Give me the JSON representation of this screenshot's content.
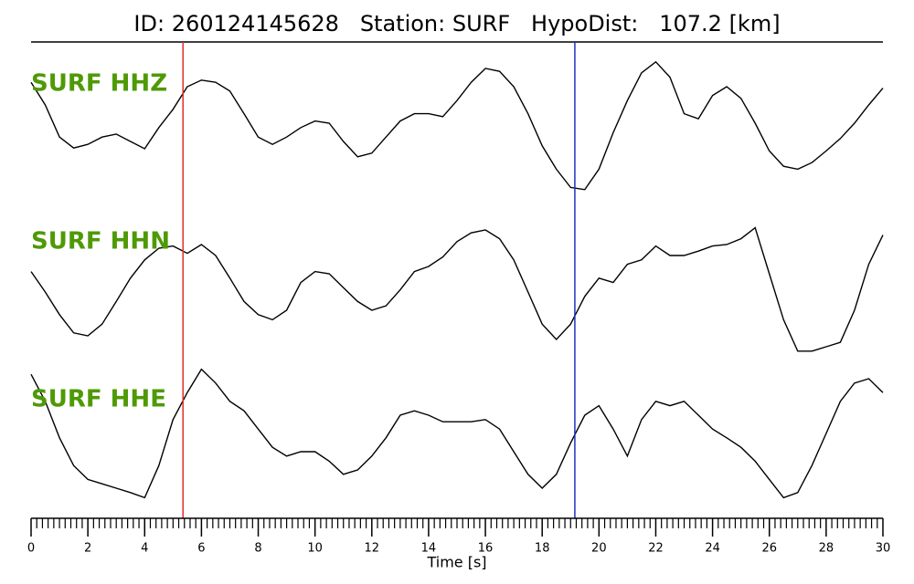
{
  "chart_data": {
    "type": "line",
    "title": "ID: 260124145628   Station: SURF   HypoDist:   107.2 [km]",
    "x_label": "Time [s]",
    "x": [
      0,
      0.5,
      1,
      1.5,
      2,
      2.5,
      3,
      3.5,
      4,
      4.5,
      5,
      5.5,
      6,
      6.5,
      7,
      7.5,
      8,
      8.5,
      9,
      9.5,
      10,
      10.5,
      11,
      11.5,
      12,
      12.5,
      13,
      13.5,
      14,
      14.5,
      15,
      15.5,
      16,
      16.5,
      17,
      17.5,
      18,
      18.5,
      19,
      19.5,
      20,
      20.5,
      21,
      21.5,
      22,
      22.5,
      23,
      23.5,
      24,
      24.5,
      25,
      25.5,
      26,
      26.5,
      27,
      27.5,
      28,
      28.5,
      29,
      29.5,
      30
    ],
    "series": [
      {
        "name": "SURF HHZ",
        "color": "#000000",
        "label_color": "#4e9a06",
        "values": [
          0.56,
          0.25,
          -0.19,
          -0.34,
          -0.29,
          -0.19,
          -0.15,
          -0.25,
          -0.35,
          -0.06,
          0.19,
          0.5,
          0.59,
          0.56,
          0.44,
          0.13,
          -0.19,
          -0.29,
          -0.19,
          -0.06,
          0.03,
          0,
          -0.25,
          -0.46,
          -0.41,
          -0.19,
          0.03,
          0.13,
          0.13,
          0.09,
          0.31,
          0.56,
          0.75,
          0.71,
          0.5,
          0.13,
          -0.31,
          -0.63,
          -0.88,
          -0.91,
          -0.63,
          -0.13,
          0.31,
          0.69,
          0.84,
          0.63,
          0.13,
          0.06,
          0.38,
          0.5,
          0.34,
          0,
          -0.38,
          -0.59,
          -0.63,
          -0.54,
          -0.38,
          -0.21,
          0,
          0.25,
          0.48
        ]
      },
      {
        "name": "SURF HHN",
        "color": "#000000",
        "label_color": "#4e9a06",
        "values": [
          0.28,
          0,
          -0.31,
          -0.56,
          -0.6,
          -0.44,
          -0.13,
          0.19,
          0.44,
          0.6,
          0.63,
          0.53,
          0.65,
          0.5,
          0.19,
          -0.13,
          -0.31,
          -0.38,
          -0.25,
          0.13,
          0.28,
          0.25,
          0.06,
          -0.13,
          -0.25,
          -0.19,
          0.03,
          0.28,
          0.35,
          0.48,
          0.69,
          0.81,
          0.85,
          0.73,
          0.44,
          0,
          -0.44,
          -0.65,
          -0.44,
          -0.06,
          0.19,
          0.13,
          0.38,
          0.44,
          0.63,
          0.5,
          0.5,
          0.56,
          0.63,
          0.65,
          0.73,
          0.88,
          0.25,
          -0.38,
          -0.81,
          -0.81,
          -0.75,
          -0.69,
          -0.25,
          0.38,
          0.78
        ]
      },
      {
        "name": "SURF HHE",
        "color": "#000000",
        "label_color": "#4e9a06",
        "values": [
          0.81,
          0.44,
          -0.06,
          -0.44,
          -0.63,
          -0.69,
          -0.75,
          -0.81,
          -0.88,
          -0.44,
          0.19,
          0.56,
          0.88,
          0.69,
          0.44,
          0.31,
          0.06,
          -0.19,
          -0.31,
          -0.25,
          -0.25,
          -0.38,
          -0.56,
          -0.5,
          -0.31,
          -0.06,
          0.25,
          0.31,
          0.25,
          0.16,
          0.16,
          0.16,
          0.19,
          0.06,
          -0.25,
          -0.56,
          -0.75,
          -0.56,
          -0.13,
          0.25,
          0.38,
          0.06,
          -0.31,
          0.19,
          0.44,
          0.38,
          0.44,
          0.25,
          0.06,
          -0.06,
          -0.19,
          -0.38,
          -0.63,
          -0.88,
          -0.81,
          -0.44,
          0,
          0.44,
          0.69,
          0.75,
          0.56
        ]
      }
    ],
    "markers": [
      {
        "x": 5.35,
        "color": "#e03020"
      },
      {
        "x": 19.15,
        "color": "#2030c0"
      }
    ],
    "xlim": [
      0,
      30
    ],
    "xticks": [
      0,
      2,
      4,
      6,
      8,
      10,
      12,
      14,
      16,
      18,
      20,
      22,
      24,
      26,
      28,
      30
    ]
  }
}
